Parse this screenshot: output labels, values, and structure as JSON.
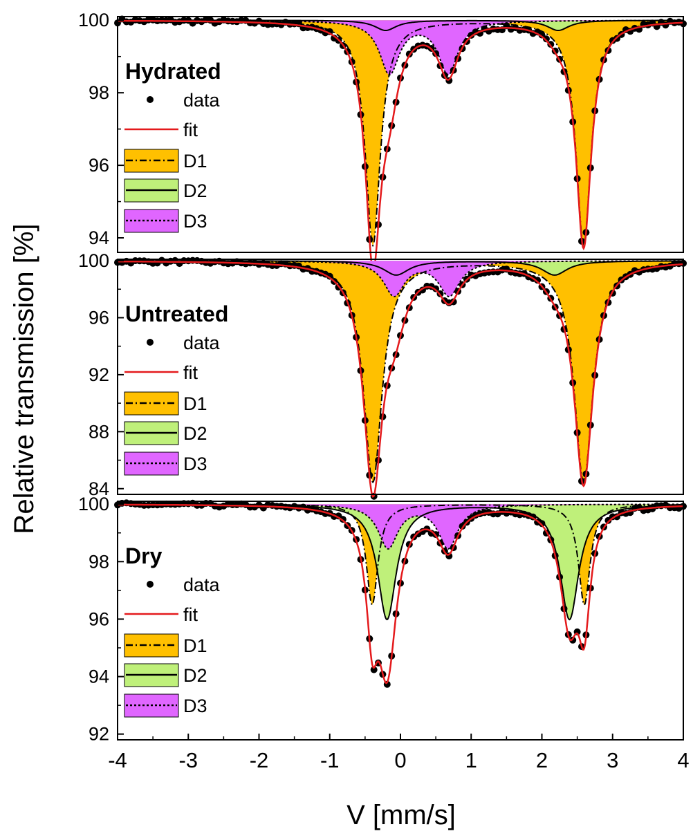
{
  "figure": {
    "ylabel": "Relative transmission [%]",
    "xlabel": "V [mm/s]"
  },
  "colors": {
    "data": "#000000",
    "fit": "#e41a1c",
    "D1": "#ffc000",
    "D2": "#bff07a",
    "D3": "#e066ff"
  },
  "chart_data": [
    {
      "type": "line",
      "title": "Hydrated",
      "xlim": [
        -4,
        4
      ],
      "ylim": [
        93.6,
        100.1
      ],
      "yticks": [
        "94",
        "96",
        "98",
        "100"
      ],
      "legend": [
        "data",
        "fit",
        "D1",
        "D2",
        "D3"
      ],
      "series": [
        {
          "name": "D1",
          "kind": "quadrupole doublet",
          "center": 1.1,
          "splitting": 2.98,
          "depth": 6.2,
          "hwhm": 0.13
        },
        {
          "name": "D2",
          "kind": "quadrupole doublet",
          "center": 1.01,
          "splitting": 2.44,
          "depth": 0.28,
          "hwhm": 0.19
        },
        {
          "name": "D3",
          "kind": "quadrupole doublet",
          "center": 0.26,
          "splitting": 0.83,
          "depth": 1.45,
          "hwhm": 0.17
        },
        {
          "name": "data",
          "kind": "points",
          "noise": 0.06
        },
        {
          "name": "fit",
          "kind": "sum"
        }
      ]
    },
    {
      "type": "line",
      "title": "Untreated",
      "xlim": [
        -4,
        4
      ],
      "ylim": [
        83.6,
        100.1
      ],
      "yticks": [
        "84",
        "88",
        "92",
        "96",
        "100"
      ],
      "legend": [
        "data",
        "fit",
        "D1",
        "D2",
        "D3"
      ],
      "series": [
        {
          "name": "D1",
          "kind": "quadrupole doublet",
          "center": 1.1,
          "splitting": 2.98,
          "depth": 15.5,
          "hwhm": 0.16
        },
        {
          "name": "D2",
          "kind": "quadrupole doublet",
          "center": 1.06,
          "splitting": 2.24,
          "depth": 1.0,
          "hwhm": 0.22
        },
        {
          "name": "D3",
          "kind": "quadrupole doublet",
          "center": 0.3,
          "splitting": 0.78,
          "depth": 2.4,
          "hwhm": 0.18
        },
        {
          "name": "data",
          "kind": "points",
          "noise": 0.12
        },
        {
          "name": "fit",
          "kind": "sum"
        }
      ]
    },
    {
      "type": "line",
      "title": "Dry",
      "xlim": [
        -4,
        4
      ],
      "ylim": [
        91.8,
        100.1
      ],
      "yticks": [
        "92",
        "94",
        "96",
        "98",
        "100"
      ],
      "legend": [
        "data",
        "fit",
        "D1",
        "D2",
        "D3"
      ],
      "series": [
        {
          "name": "D1",
          "kind": "quadrupole doublet",
          "center": 1.1,
          "splitting": 3.0,
          "depth": 3.5,
          "hwhm": 0.1
        },
        {
          "name": "D2",
          "kind": "quadrupole doublet",
          "center": 1.1,
          "splitting": 2.58,
          "depth": 4.0,
          "hwhm": 0.16
        },
        {
          "name": "D3",
          "kind": "quadrupole doublet",
          "center": 0.25,
          "splitting": 0.85,
          "depth": 1.5,
          "hwhm": 0.17
        },
        {
          "name": "data",
          "kind": "points",
          "noise": 0.07
        },
        {
          "name": "fit",
          "kind": "sum"
        }
      ]
    }
  ],
  "xaxis": {
    "ticks": [
      -4,
      -3,
      -2,
      -1,
      0,
      1,
      2,
      3,
      4
    ],
    "tick_labels": [
      "-4",
      "-3",
      "-2",
      "-1",
      "0",
      "1",
      "2",
      "3",
      "4"
    ]
  }
}
